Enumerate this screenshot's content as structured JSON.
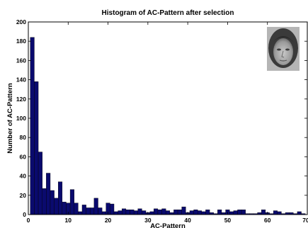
{
  "chart_data": {
    "type": "bar",
    "title": "Histogram of AC-Pattern after selection",
    "xlabel": "AC-Pattern",
    "ylabel": "Number of AC-Pattern",
    "xlim": [
      0,
      70
    ],
    "ylim": [
      0,
      200
    ],
    "xticks": [
      "0",
      "10",
      "20",
      "30",
      "40",
      "50",
      "60",
      "70"
    ],
    "yticks": [
      "0",
      "20",
      "40",
      "60",
      "80",
      "100",
      "120",
      "140",
      "160",
      "180",
      "200"
    ],
    "bar_width": 1,
    "x": [
      1,
      2,
      3,
      4,
      5,
      6,
      7,
      8,
      9,
      10,
      11,
      12,
      13,
      14,
      15,
      16,
      17,
      18,
      19,
      20,
      21,
      22,
      23,
      24,
      25,
      26,
      27,
      28,
      29,
      30,
      31,
      32,
      33,
      34,
      35,
      36,
      37,
      38,
      39,
      40,
      41,
      42,
      43,
      44,
      45,
      46,
      47,
      48,
      49,
      50,
      51,
      52,
      53,
      54,
      55,
      56,
      57,
      58,
      59,
      60,
      61,
      62,
      63,
      64,
      65,
      66,
      67,
      68,
      69
    ],
    "values": [
      184,
      138,
      65,
      27,
      43,
      25,
      17,
      34,
      13,
      12,
      26,
      12,
      3,
      10,
      7,
      7,
      17,
      7,
      3,
      12,
      11,
      3,
      4,
      6,
      5,
      5,
      4,
      6,
      4,
      2,
      3,
      6,
      5,
      6,
      4,
      2,
      5,
      5,
      8,
      2,
      4,
      5,
      4,
      3,
      5,
      2,
      1,
      5,
      2,
      5,
      3,
      4,
      5,
      5,
      1,
      1,
      1,
      2,
      5,
      2,
      1,
      4,
      3,
      1,
      2,
      2,
      1,
      3,
      1
    ],
    "bar_color": "#0a0a6e",
    "grid": false,
    "inset_image": "portrait-photo"
  }
}
